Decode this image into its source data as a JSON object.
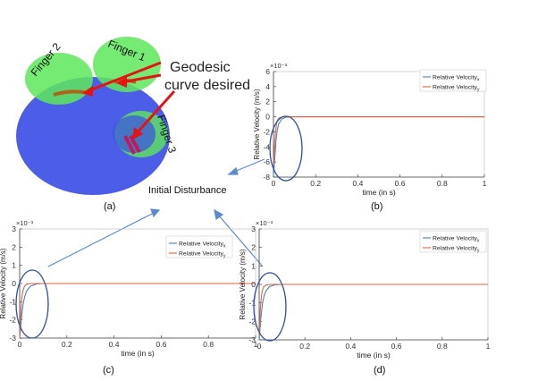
{
  "illustration": {
    "finger_labels": [
      "Finger 2",
      "Finger 1",
      "Finger 3"
    ],
    "annotation": [
      "Geodesic",
      "curve desired"
    ],
    "colors": {
      "sphere": "#3d4fe6",
      "fingers": "#5ee85a",
      "arrows": "#e41414",
      "curve": "#c01a5a"
    }
  },
  "initial_disturbance_label": "Initial Disturbance",
  "panel_labels": [
    "(a)",
    "(b)",
    "(c)",
    "(d)"
  ],
  "colors": {
    "vx": "#4a7fc0",
    "vy": "#e0643a",
    "highlight": "#2e4e9e",
    "arrow": "#5b8ad0"
  },
  "chart_data": [
    {
      "panel": "(b)",
      "type": "line",
      "xlabel": "time (in s)",
      "ylabel": "Relative Velocity (m/s)",
      "exponent": "×10⁻³",
      "xlim": [
        0,
        1
      ],
      "ylim": [
        -8,
        6
      ],
      "xticks": [
        0,
        0.2,
        0.4,
        0.6,
        0.8,
        1
      ],
      "yticks": [
        6,
        4,
        2,
        0,
        -2,
        -4,
        -6,
        -8
      ],
      "series": [
        {
          "name": "Relative Velocity",
          "sub": "x",
          "x": [
            0,
            0.004,
            0.008,
            0.012,
            0.018,
            0.025,
            0.04,
            0.06,
            0.1,
            1
          ],
          "y": [
            -7.8,
            -6.4,
            -4.8,
            -3.2,
            -1.8,
            -0.9,
            -0.3,
            -0.05,
            0,
            0
          ]
        },
        {
          "name": "Relative Velocity",
          "sub": "y",
          "x": [
            0,
            0.003,
            0.006,
            0.01,
            0.015,
            0.02,
            0.03,
            0.05,
            0.1,
            1
          ],
          "y": [
            -6.4,
            -4.9,
            -3.3,
            -1.9,
            -0.9,
            -0.4,
            -0.1,
            0,
            0,
            0
          ]
        }
      ]
    },
    {
      "panel": "(c)",
      "type": "line",
      "xlabel": "time (in s)",
      "ylabel": "Relative Velocity (m/s)",
      "exponent": "×10⁻³",
      "xlim": [
        0,
        1
      ],
      "ylim": [
        -3,
        3
      ],
      "xticks": [
        0,
        0.2,
        0.4,
        0.6,
        0.8,
        1
      ],
      "yticks": [
        3,
        2,
        1,
        0,
        -1,
        -2,
        -3
      ],
      "series": [
        {
          "name": "Relative Velocity",
          "sub": "x",
          "x": [
            0,
            0.003,
            0.006,
            0.01,
            0.015,
            0.022,
            0.03,
            0.045,
            0.07,
            0.1,
            1
          ],
          "y": [
            -3,
            -2.6,
            -2.1,
            -1.6,
            -1.1,
            -0.7,
            -0.4,
            -0.15,
            -0.03,
            0,
            0
          ]
        },
        {
          "name": "Relative Velocity",
          "sub": "y",
          "x": [
            0,
            0.002,
            0.004,
            0.007,
            0.01,
            0.015,
            0.02,
            0.03,
            0.05,
            1
          ],
          "y": [
            -3,
            -2.3,
            -1.7,
            -1.1,
            -0.7,
            -0.35,
            -0.15,
            -0.04,
            0,
            0
          ]
        }
      ]
    },
    {
      "panel": "(d)",
      "type": "line",
      "xlabel": "time (in s)",
      "ylabel": "Relative Velocity (m/s)",
      "exponent": "×10⁻³",
      "xlim": [
        0,
        1
      ],
      "ylim": [
        -3,
        3
      ],
      "xticks": [
        0,
        0.2,
        0.4,
        0.6,
        0.8,
        1
      ],
      "yticks": [
        3,
        2,
        1,
        0,
        -1,
        -2,
        -3
      ],
      "series": [
        {
          "name": "Relative Velocity",
          "sub": "x",
          "x": [
            0,
            0.003,
            0.006,
            0.01,
            0.015,
            0.022,
            0.03,
            0.045,
            0.07,
            0.1,
            1
          ],
          "y": [
            -3,
            -2.5,
            -2.0,
            -1.5,
            -1.0,
            -0.6,
            -0.35,
            -0.12,
            -0.02,
            0,
            0
          ]
        },
        {
          "name": "Relative Velocity",
          "sub": "y",
          "x": [
            0,
            0.002,
            0.004,
            0.007,
            0.01,
            0.015,
            0.02,
            0.03,
            0.05,
            1
          ],
          "y": [
            -2.8,
            -2.2,
            -1.6,
            -1.0,
            -0.6,
            -0.3,
            -0.12,
            -0.03,
            0,
            0
          ]
        }
      ]
    }
  ]
}
